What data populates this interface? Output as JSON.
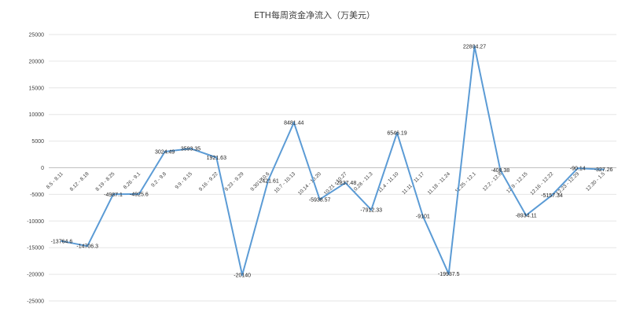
{
  "chart_data": {
    "type": "line",
    "title": "ETH每周资金净流入（万美元）",
    "xlabel": "",
    "ylabel": "",
    "ylim": [
      -25000,
      25000
    ],
    "yticks": [
      -25000,
      -20000,
      -15000,
      -10000,
      -5000,
      0,
      5000,
      10000,
      15000,
      20000,
      25000
    ],
    "grid": true,
    "legend": "none",
    "categories": [
      "8.5 - 8.11",
      "8.12 - 8.18",
      "8.19 - 8.25",
      "8.26 - 9.1",
      "9.2 - 9.8",
      "9.9 - 9.15",
      "9.16 - 9.22",
      "9.23 - 9.29",
      "9.30 - 10.6",
      "10.7 - 10.13",
      "10.14 - 10.20",
      "10.21 - 10.27",
      "10.28 - 11.3",
      "11.4 - 11.10",
      "11.11 - 11.17",
      "11.18 - 11.24",
      "11.25 - 12.1",
      "12.2 - 12.8",
      "12.9 - 12.15",
      "12.16 - 12.22",
      "12.23 - 12.29",
      "12.30 - 1.5"
    ],
    "series": [
      {
        "values": [
          -13764.6,
          -14706.3,
          -4987.1,
          -4925.6,
          3024.49,
          3593.35,
          1921.63,
          -20140,
          -2421.61,
          8481.44,
          -5938.57,
          -2837.48,
          -7912.33,
          6546.19,
          -9101,
          -19937.5,
          22804.27,
          -408.38,
          -8934.11,
          -5157.34,
          -90.14,
          -327.26
        ],
        "labels": [
          "-13764.6",
          "-14706.3",
          "-4987.1",
          "-4925.6",
          "3024.49",
          "3593.35",
          "1921.63",
          "-20140",
          "-2421.61",
          "8481.44",
          "-5938.57",
          "-2837.48",
          "-7912.33",
          "6546.19",
          "-9101",
          "-19937.5",
          "22804.27",
          "-408.38",
          "-8934.11",
          "-5157.34",
          "-90.14",
          "-327.26"
        ]
      }
    ],
    "colors": {
      "line": "#5b9bd5",
      "grid": "#e6e6e6",
      "text": "#404040"
    }
  }
}
